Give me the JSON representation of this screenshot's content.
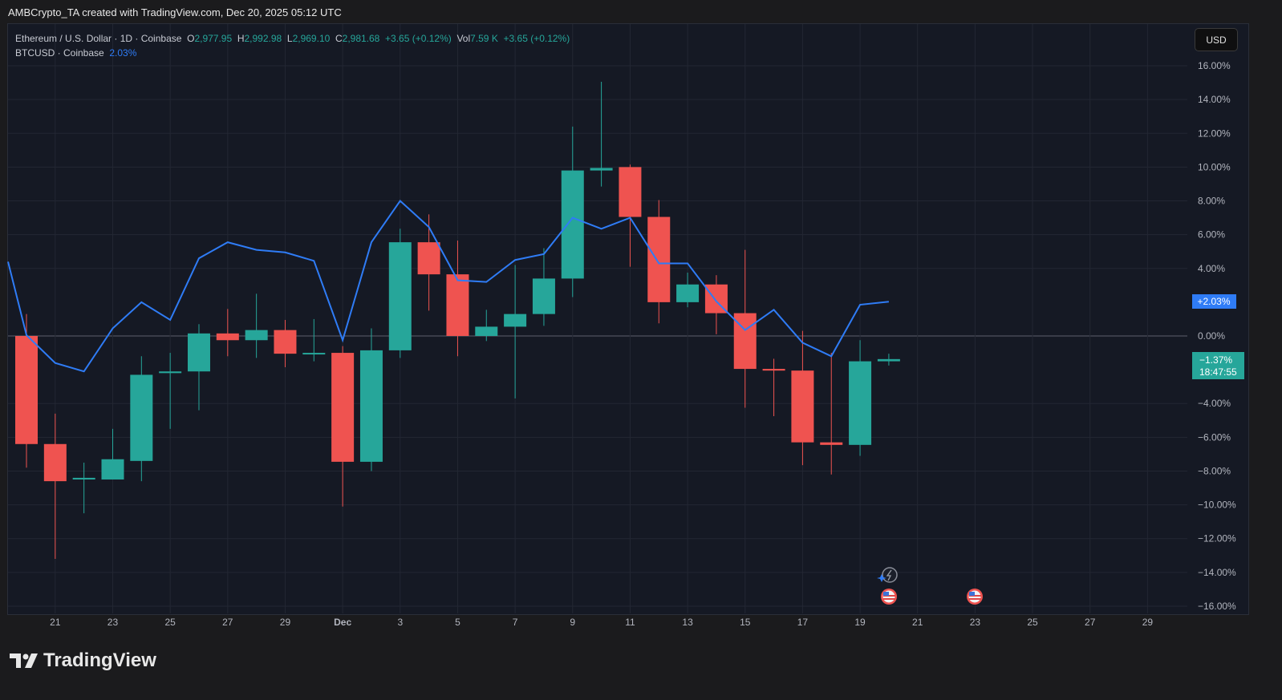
{
  "credit": "AMBCrypto_TA created with TradingView.com, Dec 20, 2025 05:12 UTC",
  "legend": {
    "symbol": "Ethereum / U.S. Dollar · 1D · Coinbase",
    "o_label": "O",
    "o": "2,977.95",
    "h_label": "H",
    "h": "2,992.98",
    "l_label": "L",
    "l": "2,969.10",
    "c_label": "C",
    "c": "2,981.68",
    "change": "+3.65 (+0.12%)",
    "vol_label": "Vol",
    "vol": "7.59 K",
    "vol_change": "+3.65 (+0.12%)",
    "compare": "BTCUSD · Coinbase",
    "compare_value": "2.03%"
  },
  "currency_button": "USD",
  "btc_badge": "+2.03%",
  "eth_badge": "−1.37%",
  "countdown": "18:47:55",
  "logo_text": "TradingView",
  "colors": {
    "up": "#26a69a",
    "down": "#ef5350",
    "btc": "#2f7cf6",
    "bg": "#151924"
  },
  "event_icons": [
    {
      "type": "flash-icon",
      "date": "Dec 20"
    },
    {
      "type": "us-flag-icon",
      "date": "Dec 20"
    },
    {
      "type": "us-flag-icon",
      "date": "Dec 23"
    }
  ],
  "chart_data": {
    "type": "candlestick",
    "scale": "percent",
    "ylim": [
      -16,
      16
    ],
    "y_ticks": [
      "16.00%",
      "14.00%",
      "12.00%",
      "10.00%",
      "8.00%",
      "6.00%",
      "4.00%",
      "0.00%",
      "−4.00%",
      "−6.00%",
      "−8.00%",
      "−10.00%",
      "−12.00%",
      "−14.00%",
      "−16.00%"
    ],
    "y_tick_values": [
      16,
      14,
      12,
      10,
      8,
      6,
      4,
      0,
      -4,
      -6,
      -8,
      -10,
      -12,
      -14,
      -16
    ],
    "x_ticks": [
      {
        "label": "21",
        "date": "Nov 21"
      },
      {
        "label": "23",
        "date": "Nov 23"
      },
      {
        "label": "25",
        "date": "Nov 25"
      },
      {
        "label": "27",
        "date": "Nov 27"
      },
      {
        "label": "29",
        "date": "Nov 29"
      },
      {
        "label": "Dec",
        "date": "Dec 1"
      },
      {
        "label": "3",
        "date": "Dec 3"
      },
      {
        "label": "5",
        "date": "Dec 5"
      },
      {
        "label": "7",
        "date": "Dec 7"
      },
      {
        "label": "9",
        "date": "Dec 9"
      },
      {
        "label": "11",
        "date": "Dec 11"
      },
      {
        "label": "13",
        "date": "Dec 13"
      },
      {
        "label": "15",
        "date": "Dec 15"
      },
      {
        "label": "17",
        "date": "Dec 17"
      },
      {
        "label": "19",
        "date": "Dec 19"
      },
      {
        "label": "21",
        "date": "Dec 21"
      },
      {
        "label": "23",
        "date": "Dec 23"
      },
      {
        "label": "25",
        "date": "Dec 25"
      },
      {
        "label": "27",
        "date": "Dec 27"
      },
      {
        "label": "29",
        "date": "Dec 29"
      }
    ],
    "grid": true,
    "series": [
      {
        "name": "Ethereum / U.S. Dollar",
        "type": "candlestick",
        "unit": "%",
        "dates": [
          "Nov 20",
          "Nov 21",
          "Nov 22",
          "Nov 23",
          "Nov 24",
          "Nov 25",
          "Nov 26",
          "Nov 27",
          "Nov 28",
          "Nov 29",
          "Nov 30",
          "Dec 1",
          "Dec 2",
          "Dec 3",
          "Dec 4",
          "Dec 5",
          "Dec 6",
          "Dec 7",
          "Dec 8",
          "Dec 9",
          "Dec 10",
          "Dec 11",
          "Dec 12",
          "Dec 13",
          "Dec 14",
          "Dec 15",
          "Dec 16",
          "Dec 17",
          "Dec 18",
          "Dec 19",
          "Dec 20"
        ],
        "ohlc": [
          [
            0,
            1.3,
            -7.8,
            -6.4
          ],
          [
            -6.4,
            -4.6,
            -13.2,
            -8.6
          ],
          [
            -8.5,
            -7.5,
            -10.5,
            -8.4
          ],
          [
            -8.5,
            -5.5,
            -8.5,
            -7.3
          ],
          [
            -7.4,
            -1.2,
            -8.6,
            -2.3
          ],
          [
            -2.2,
            -1.0,
            -5.5,
            -2.1
          ],
          [
            -2.1,
            0.7,
            -4.4,
            0.15
          ],
          [
            0.15,
            1.6,
            -1.2,
            -0.25
          ],
          [
            -0.25,
            2.5,
            -1.3,
            0.35
          ],
          [
            0.35,
            0.95,
            -1.85,
            -1.05
          ],
          [
            -1.05,
            1.0,
            -1.5,
            -1.0
          ],
          [
            -1.0,
            -0.6,
            -10.1,
            -7.45
          ],
          [
            -7.45,
            0.45,
            -8.0,
            -0.85
          ],
          [
            -0.85,
            6.35,
            -1.3,
            5.55
          ],
          [
            5.55,
            7.2,
            1.5,
            3.65
          ],
          [
            3.65,
            5.65,
            -1.2,
            0
          ],
          [
            0,
            1.55,
            -0.3,
            0.55
          ],
          [
            0.55,
            4.2,
            -3.7,
            1.3
          ],
          [
            1.3,
            5.2,
            0.6,
            3.4
          ],
          [
            3.4,
            12.4,
            2.3,
            9.8
          ],
          [
            9.8,
            15.05,
            8.85,
            9.95
          ],
          [
            10.0,
            10.15,
            4.1,
            7.05
          ],
          [
            7.05,
            8.05,
            0.75,
            2.0
          ],
          [
            2.0,
            3.75,
            1.7,
            3.05
          ],
          [
            3.05,
            3.6,
            0.1,
            1.35
          ],
          [
            1.35,
            5.1,
            -4.25,
            -1.95
          ],
          [
            -1.95,
            -1.35,
            -4.75,
            -2.05
          ],
          [
            -2.05,
            0.3,
            -7.65,
            -6.3
          ],
          [
            -6.3,
            -1.0,
            -8.2,
            -6.45
          ],
          [
            -6.45,
            -0.25,
            -7.1,
            -1.5
          ],
          [
            -1.5,
            -1.05,
            -1.75,
            -1.37
          ]
        ]
      },
      {
        "name": "BTCUSD",
        "type": "line",
        "unit": "%",
        "dates": [
          "Nov 19",
          "Nov 20",
          "Nov 21",
          "Nov 22",
          "Nov 23",
          "Nov 24",
          "Nov 25",
          "Nov 26",
          "Nov 27",
          "Nov 28",
          "Nov 29",
          "Nov 30",
          "Dec 1",
          "Dec 2",
          "Dec 3",
          "Dec 4",
          "Dec 5",
          "Dec 6",
          "Dec 7",
          "Dec 8",
          "Dec 9",
          "Dec 10",
          "Dec 11",
          "Dec 12",
          "Dec 13",
          "Dec 14",
          "Dec 15",
          "Dec 16",
          "Dec 17",
          "Dec 18",
          "Dec 19",
          "Dec 20"
        ],
        "values": [
          4.4,
          0.05,
          -1.6,
          -2.1,
          0.45,
          2.0,
          0.95,
          4.6,
          5.55,
          5.1,
          4.95,
          4.45,
          -0.25,
          5.55,
          8.0,
          6.45,
          3.3,
          3.2,
          4.5,
          4.85,
          7.0,
          6.35,
          7.0,
          4.3,
          4.3,
          2.05,
          0.35,
          1.55,
          -0.4,
          -1.2,
          1.85,
          2.03
        ]
      }
    ]
  }
}
